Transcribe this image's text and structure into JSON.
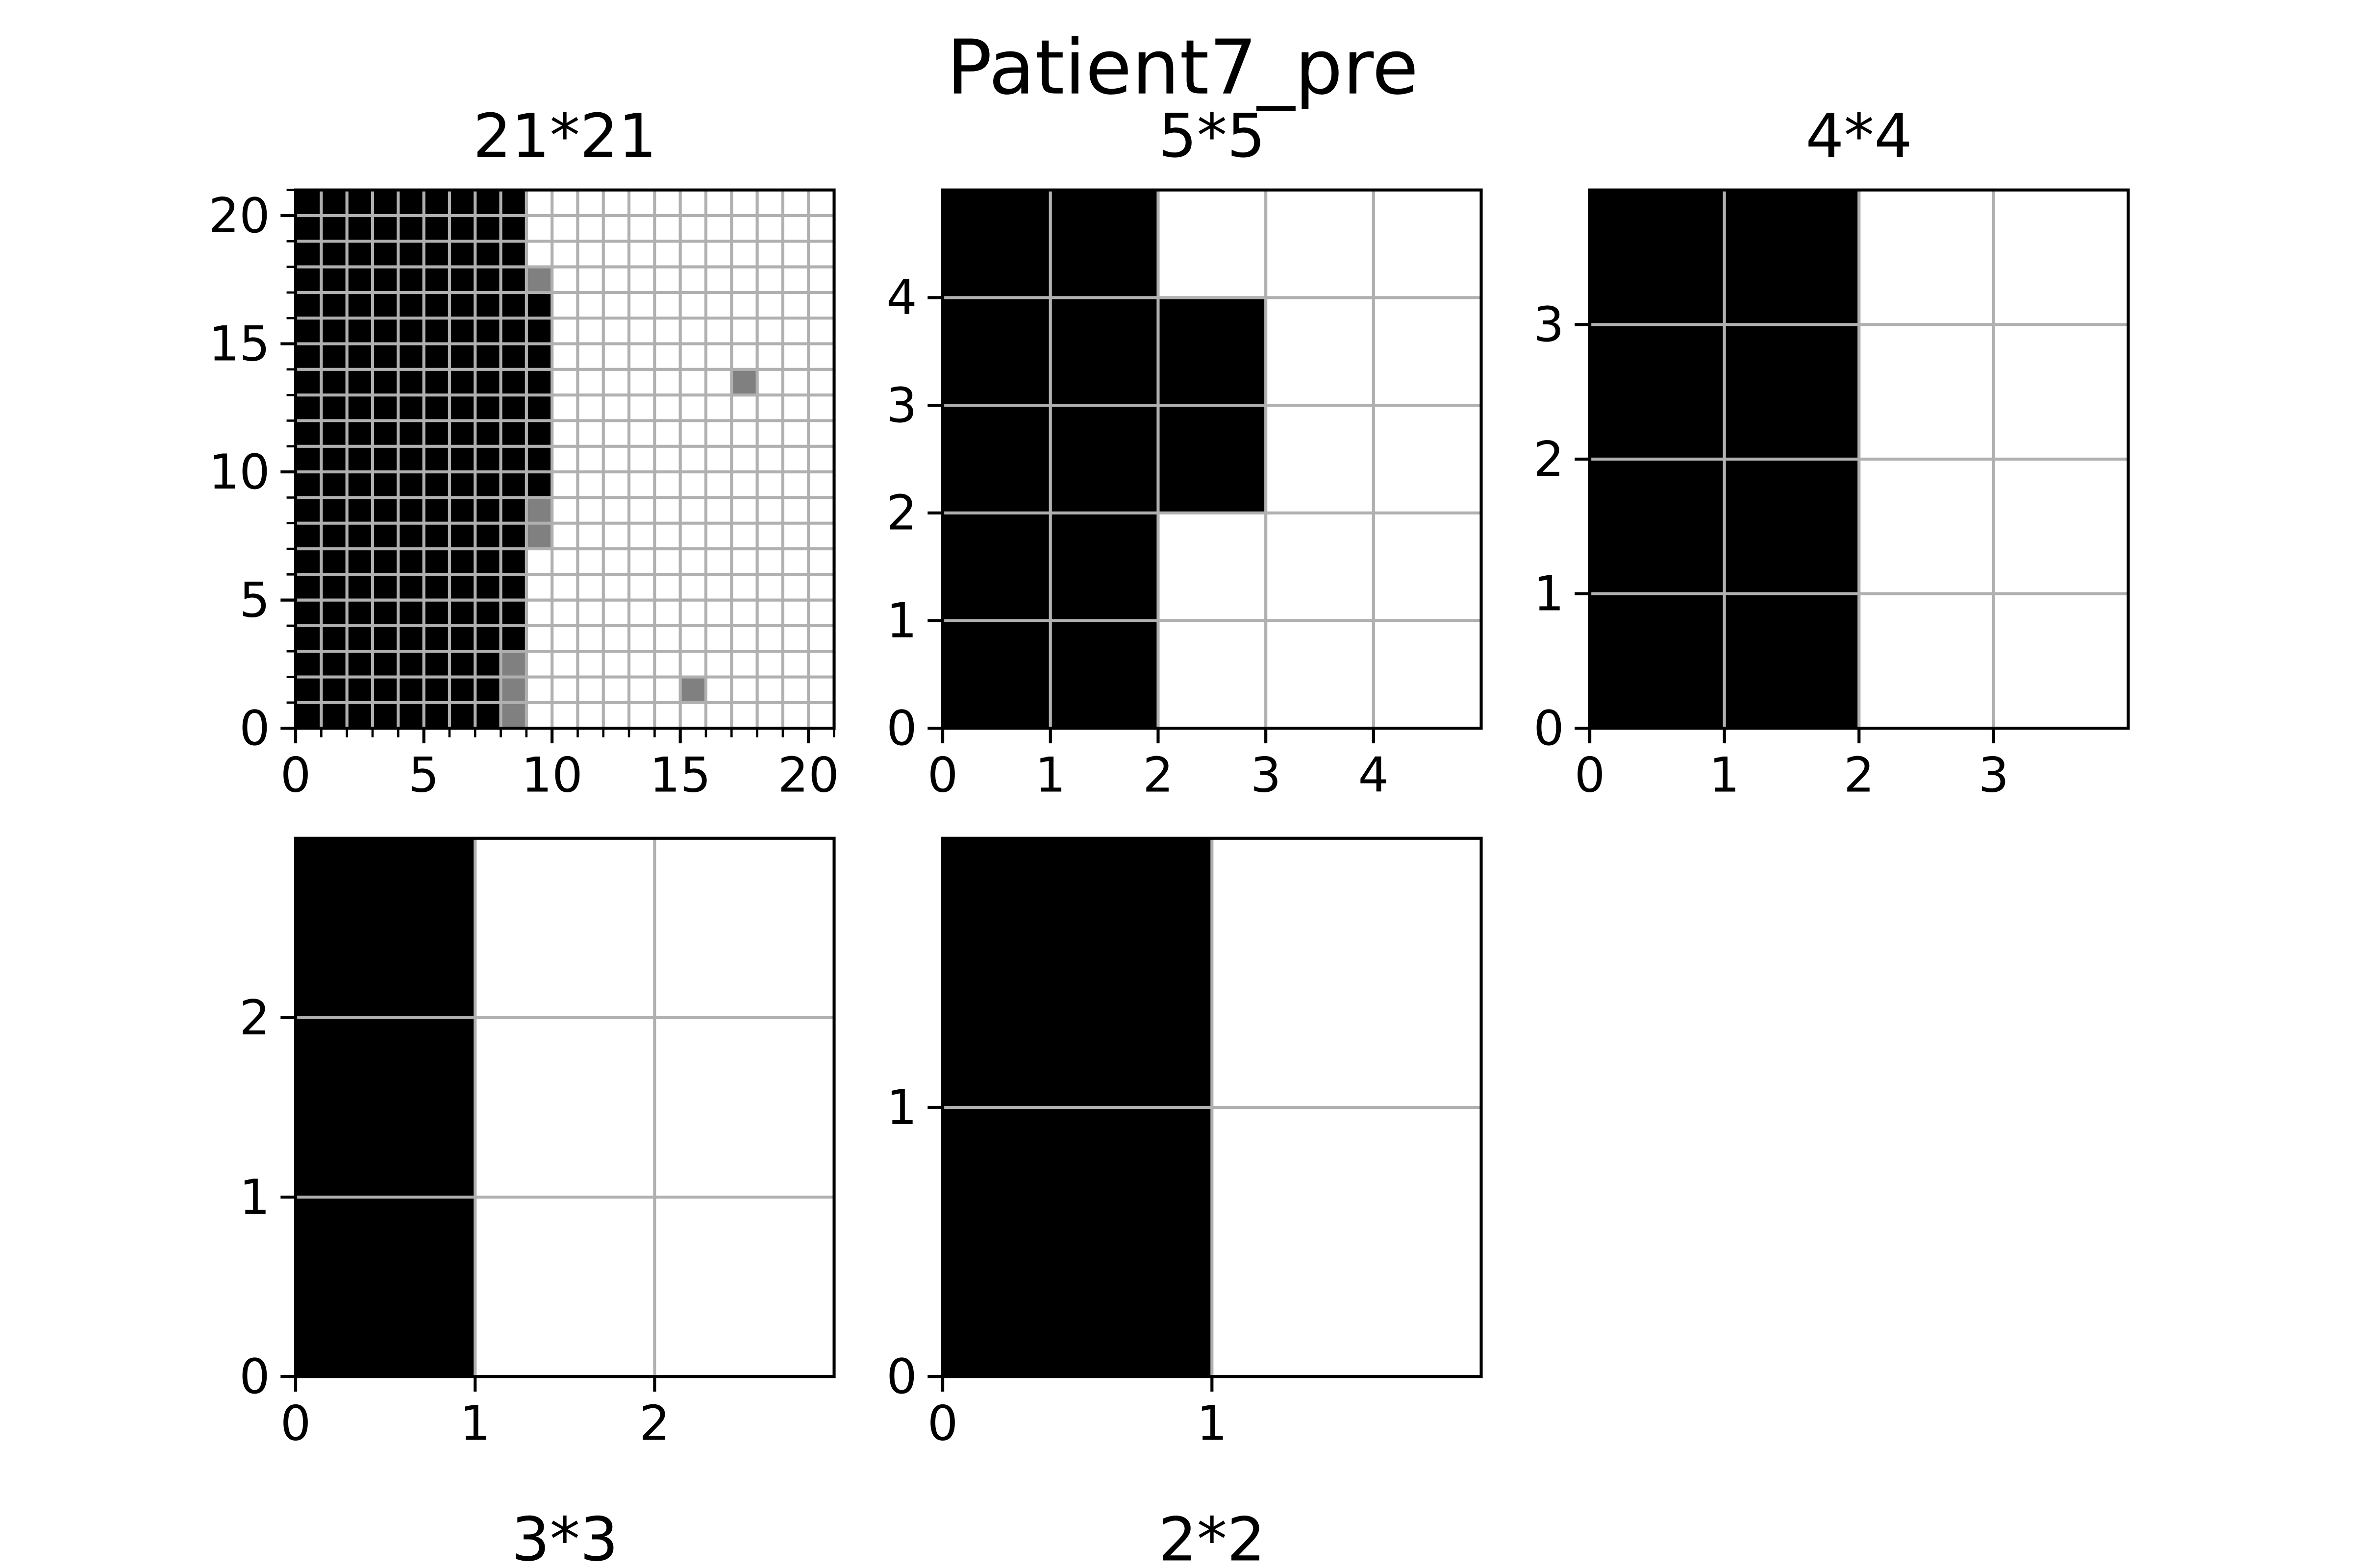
{
  "figure": {
    "suptitle": "Patient7_pre"
  },
  "colors": {
    "filled": "#000000",
    "partial": "#808080",
    "empty": "#ffffff",
    "grid": "#b0b0b0",
    "frame": "#000000"
  },
  "chart_data": [
    {
      "type": "heatmap",
      "title": "21*21",
      "n": 21,
      "xlim": [
        0,
        21
      ],
      "ylim": [
        0,
        21
      ],
      "xticks": [
        0,
        5,
        10,
        15,
        20
      ],
      "yticks": [
        0,
        5,
        10,
        15,
        20
      ],
      "minor_ticks": true,
      "grid": true,
      "legend": "none",
      "value_legend": {
        "1": "black",
        "0.5": "gray",
        "0": "white"
      },
      "column_profile": [
        1,
        1,
        1,
        1,
        1,
        1,
        1,
        1,
        1,
        0,
        0,
        0,
        0,
        0,
        0,
        0,
        0,
        0,
        0,
        0,
        0
      ],
      "overrides": [
        {
          "col": 9,
          "row": 17,
          "value": 0.5
        },
        {
          "col": 9,
          "row": 16,
          "value": 1
        },
        {
          "col": 9,
          "row": 15,
          "value": 1
        },
        {
          "col": 9,
          "row": 14,
          "value": 1
        },
        {
          "col": 9,
          "row": 13,
          "value": 1
        },
        {
          "col": 9,
          "row": 12,
          "value": 1
        },
        {
          "col": 9,
          "row": 11,
          "value": 1
        },
        {
          "col": 9,
          "row": 10,
          "value": 1
        },
        {
          "col": 9,
          "row": 9,
          "value": 1
        },
        {
          "col": 9,
          "row": 8,
          "value": 0.5
        },
        {
          "col": 9,
          "row": 7,
          "value": 0.5
        },
        {
          "col": 8,
          "row": 2,
          "value": 0.5
        },
        {
          "col": 8,
          "row": 1,
          "value": 0.5
        },
        {
          "col": 8,
          "row": 0,
          "value": 0.5
        },
        {
          "col": 17,
          "row": 13,
          "value": 0.5
        },
        {
          "col": 15,
          "row": 1,
          "value": 0.5
        }
      ]
    },
    {
      "type": "heatmap",
      "title": "5*5",
      "n": 5,
      "xlim": [
        0,
        5
      ],
      "ylim": [
        0,
        5
      ],
      "xticks": [
        0,
        1,
        2,
        3,
        4
      ],
      "yticks": [
        0,
        1,
        2,
        3,
        4
      ],
      "minor_ticks": false,
      "grid": true,
      "legend": "none",
      "column_profile": [
        1,
        1,
        0,
        0,
        0
      ],
      "overrides": [
        {
          "col": 2,
          "row": 3,
          "value": 1
        },
        {
          "col": 2,
          "row": 2,
          "value": 1
        }
      ]
    },
    {
      "type": "heatmap",
      "title": "4*4",
      "n": 4,
      "xlim": [
        0,
        4
      ],
      "ylim": [
        0,
        4
      ],
      "xticks": [
        0,
        1,
        2,
        3
      ],
      "yticks": [
        0,
        1,
        2,
        3
      ],
      "minor_ticks": false,
      "grid": true,
      "legend": "none",
      "column_profile": [
        1,
        1,
        0,
        0
      ],
      "overrides": []
    },
    {
      "type": "heatmap",
      "title": "3*3",
      "n": 3,
      "xlim": [
        0,
        3
      ],
      "ylim": [
        0,
        3
      ],
      "xticks": [
        0,
        1,
        2
      ],
      "yticks": [
        0,
        1,
        2
      ],
      "minor_ticks": false,
      "grid": true,
      "legend": "none",
      "column_profile": [
        1,
        0,
        0
      ],
      "overrides": []
    },
    {
      "type": "heatmap",
      "title": "2*2",
      "n": 2,
      "xlim": [
        0,
        2
      ],
      "ylim": [
        0,
        2
      ],
      "xticks": [
        0,
        1
      ],
      "yticks": [
        0,
        1
      ],
      "minor_ticks": false,
      "grid": true,
      "legend": "none",
      "column_profile": [
        1,
        0
      ],
      "overrides": []
    }
  ]
}
